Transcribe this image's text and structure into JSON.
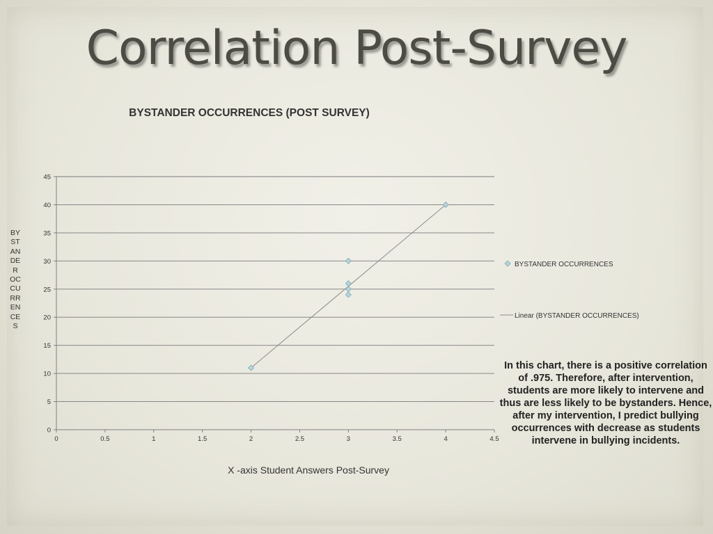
{
  "slide_title": "Correlation Post-Survey",
  "note": "In this chart, there is a positive correlation of .975. Therefore, after intervention, students are more likely to intervene and thus are less likely to be bystanders.  Hence, after my intervention, I predict bullying occurrences with decrease as students intervene in bullying incidents.",
  "chart_data": {
    "type": "scatter",
    "title": "BYSTANDER OCCURRENCES (POST SURVEY)",
    "xlabel": "X -axis Student Answers Post-Survey",
    "ylabel": "BYSTANDER OCCURRENCES",
    "xlim": [
      0,
      4.5
    ],
    "ylim": [
      0,
      45
    ],
    "x_ticks": [
      "0",
      "0.5",
      "1",
      "1.5",
      "2",
      "2.5",
      "3",
      "3.5",
      "4",
      "4.5"
    ],
    "y_ticks": [
      "0",
      "5",
      "10",
      "15",
      "20",
      "25",
      "30",
      "35",
      "40",
      "45"
    ],
    "grid": "horizontal",
    "legend_position": "right",
    "series": [
      {
        "name": "BYSTANDER OCCURRENCES",
        "marker": "diamond",
        "color": "#b9d3dc",
        "points": [
          [
            2,
            11
          ],
          [
            3,
            30
          ],
          [
            3,
            26
          ],
          [
            3,
            25
          ],
          [
            3,
            24
          ],
          [
            4,
            40
          ]
        ]
      },
      {
        "name": "Linear (BYSTANDER OCCURRENCES)",
        "type": "trendline",
        "color": "#8a8a8a",
        "points": [
          [
            2,
            11
          ],
          [
            4,
            40
          ]
        ]
      }
    ]
  }
}
